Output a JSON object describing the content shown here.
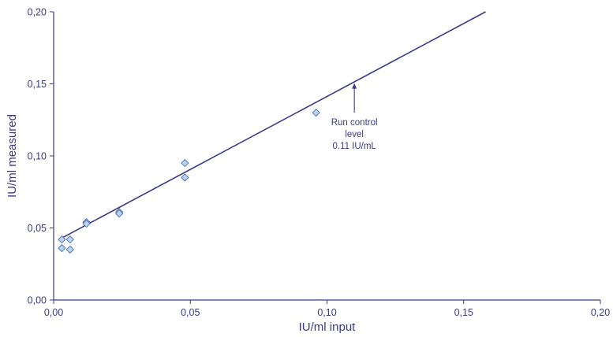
{
  "chart_data": {
    "type": "scatter",
    "title": "",
    "xlabel": "IU/ml input",
    "ylabel": "IU/ml measured",
    "xlim": [
      0,
      0.2
    ],
    "ylim": [
      0,
      0.2
    ],
    "x_ticks": [
      "0,00",
      "0,05",
      "0,10",
      "0,15",
      "0,20"
    ],
    "y_ticks": [
      "0,00",
      "0,05",
      "0,10",
      "0,15",
      "0,20"
    ],
    "grid": false,
    "colors": {
      "axis": "#3b3a8a",
      "line": "#3b3a8a",
      "marker_fill": "#b8d4ef",
      "marker_stroke": "#4a6fb3",
      "text": "#3b3a8a"
    },
    "series": [
      {
        "type": "scatter",
        "marker": "diamond",
        "points": [
          {
            "x": 0.003,
            "y": 0.042
          },
          {
            "x": 0.003,
            "y": 0.036
          },
          {
            "x": 0.006,
            "y": 0.042
          },
          {
            "x": 0.006,
            "y": 0.035
          },
          {
            "x": 0.012,
            "y": 0.054
          },
          {
            "x": 0.012,
            "y": 0.053
          },
          {
            "x": 0.024,
            "y": 0.061
          },
          {
            "x": 0.024,
            "y": 0.06
          },
          {
            "x": 0.048,
            "y": 0.095
          },
          {
            "x": 0.048,
            "y": 0.085
          },
          {
            "x": 0.096,
            "y": 0.13
          }
        ]
      },
      {
        "type": "line",
        "points": [
          {
            "x": 0.003,
            "y": 0.043
          },
          {
            "x": 0.158,
            "y": 0.2
          }
        ]
      }
    ],
    "annotations": [
      {
        "lines": [
          "Run control",
          "level",
          "0.11 IU/mL"
        ],
        "arrow_to": {
          "x": 0.11,
          "y": 0.1505
        },
        "arrow_from": {
          "x": 0.11,
          "y": 0.13
        }
      }
    ]
  }
}
